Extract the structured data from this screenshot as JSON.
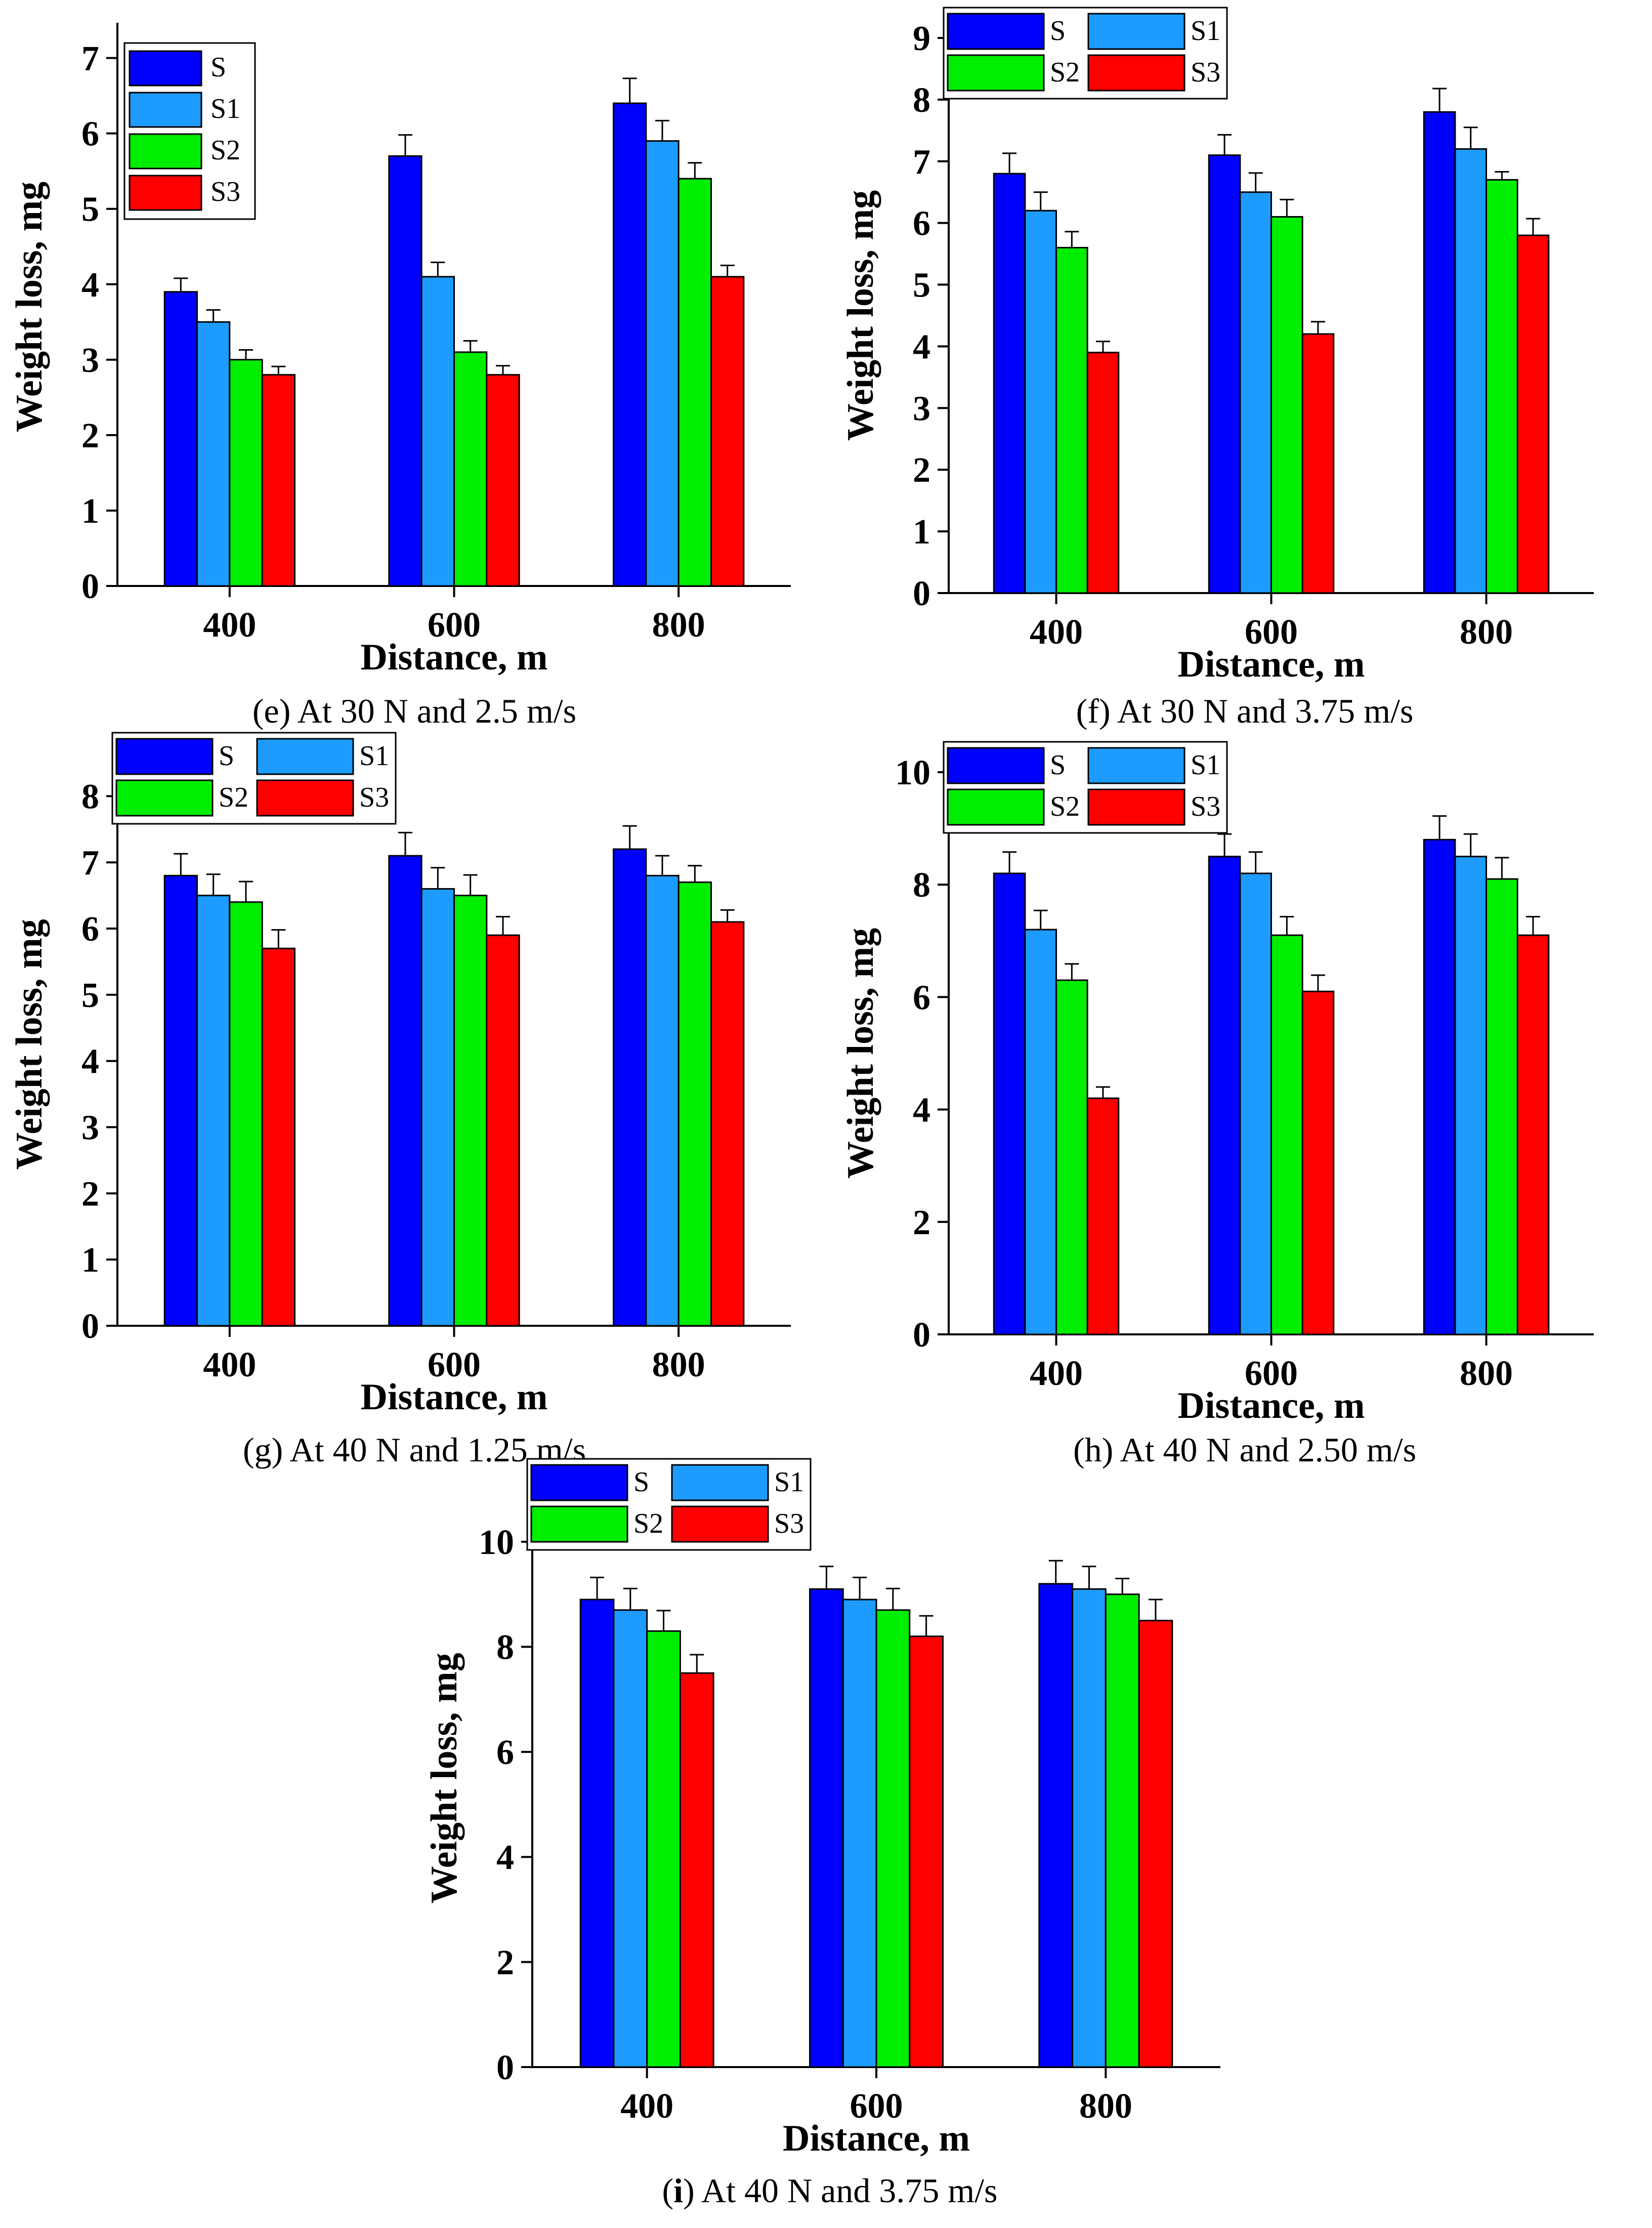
{
  "series_colors": {
    "S": "#0000ff",
    "S1": "#1e9bff",
    "S2": "#00ee00",
    "S3": "#ff0000"
  },
  "chart_data": [
    {
      "id": "e",
      "type": "bar",
      "caption": {
        "letter": "e",
        "text": "At 30 N and 2.5 m/s",
        "bold_letter": false
      },
      "xlabel": "Distance, m",
      "ylabel": "Weight loss, mg",
      "ylim": [
        0,
        7.4
      ],
      "yticks": [
        "0",
        "1",
        "2",
        "3",
        "4",
        "5",
        "6",
        "7"
      ],
      "categories": [
        "400",
        "600",
        "800"
      ],
      "legend": {
        "layout": "column",
        "placement": "top-left"
      },
      "series": [
        {
          "name": "S",
          "values": [
            3.9,
            5.7,
            6.4
          ],
          "errors": [
            0.18,
            0.28,
            0.33
          ]
        },
        {
          "name": "S1",
          "values": [
            3.5,
            4.1,
            5.9
          ],
          "errors": [
            0.16,
            0.19,
            0.27
          ]
        },
        {
          "name": "S2",
          "values": [
            3.0,
            3.1,
            5.4
          ],
          "errors": [
            0.13,
            0.15,
            0.21
          ]
        },
        {
          "name": "S3",
          "values": [
            2.8,
            2.8,
            4.1
          ],
          "errors": [
            0.11,
            0.12,
            0.15
          ]
        }
      ]
    },
    {
      "id": "f",
      "type": "bar",
      "caption": {
        "letter": "f",
        "text": "At 30 N and 3.75 m/s",
        "bold_letter": false
      },
      "xlabel": "Distance, m",
      "ylabel": "Weight loss, mg",
      "ylim": [
        0,
        9
      ],
      "yticks": [
        "0",
        "1",
        "2",
        "3",
        "4",
        "5",
        "6",
        "7",
        "8",
        "9"
      ],
      "categories": [
        "400",
        "600",
        "800"
      ],
      "legend": {
        "layout": "grid",
        "placement": "top"
      },
      "series": [
        {
          "name": "S",
          "values": [
            6.8,
            7.1,
            7.8
          ],
          "errors": [
            0.33,
            0.33,
            0.38
          ]
        },
        {
          "name": "S1",
          "values": [
            6.2,
            6.5,
            7.2
          ],
          "errors": [
            0.3,
            0.31,
            0.35
          ]
        },
        {
          "name": "S2",
          "values": [
            5.6,
            6.1,
            6.7
          ],
          "errors": [
            0.26,
            0.28,
            0.13
          ]
        },
        {
          "name": "S3",
          "values": [
            3.9,
            4.2,
            5.8
          ],
          "errors": [
            0.18,
            0.2,
            0.27
          ]
        }
      ]
    },
    {
      "id": "g",
      "type": "bar",
      "caption": {
        "letter": "g",
        "text": "At 40 N and 1.25 m/s",
        "bold_letter": false
      },
      "xlabel": "Distance, m",
      "ylabel": "Weight loss, mg",
      "ylim": [
        0,
        8.5
      ],
      "yticks": [
        "0",
        "1",
        "2",
        "3",
        "4",
        "5",
        "6",
        "7",
        "8"
      ],
      "categories": [
        "400",
        "600",
        "800"
      ],
      "legend": {
        "layout": "grid",
        "placement": "top"
      },
      "series": [
        {
          "name": "S",
          "values": [
            6.8,
            7.1,
            7.2
          ],
          "errors": [
            0.33,
            0.35,
            0.35
          ]
        },
        {
          "name": "S1",
          "values": [
            6.5,
            6.6,
            6.8
          ],
          "errors": [
            0.32,
            0.32,
            0.3
          ]
        },
        {
          "name": "S2",
          "values": [
            6.4,
            6.5,
            6.7
          ],
          "errors": [
            0.31,
            0.31,
            0.25
          ]
        },
        {
          "name": "S3",
          "values": [
            5.7,
            5.9,
            6.1
          ],
          "errors": [
            0.28,
            0.28,
            0.18
          ]
        }
      ]
    },
    {
      "id": "h",
      "type": "bar",
      "caption": {
        "letter": "h",
        "text": "At 40 N and 2.50 m/s",
        "bold_letter": false
      },
      "xlabel": "Distance, m",
      "ylabel": "Weight loss, mg",
      "ylim": [
        0,
        10
      ],
      "yticks": [
        "0",
        "2",
        "4",
        "6",
        "8",
        "10"
      ],
      "categories": [
        "400",
        "600",
        "800"
      ],
      "legend": {
        "layout": "grid",
        "placement": "top"
      },
      "series": [
        {
          "name": "S",
          "values": [
            8.2,
            8.5,
            8.8
          ],
          "errors": [
            0.38,
            0.4,
            0.42
          ]
        },
        {
          "name": "S1",
          "values": [
            7.2,
            8.2,
            8.5
          ],
          "errors": [
            0.34,
            0.38,
            0.4
          ]
        },
        {
          "name": "S2",
          "values": [
            6.3,
            7.1,
            8.1
          ],
          "errors": [
            0.29,
            0.33,
            0.38
          ]
        },
        {
          "name": "S3",
          "values": [
            4.2,
            6.1,
            7.1
          ],
          "errors": [
            0.2,
            0.29,
            0.33
          ]
        }
      ]
    },
    {
      "id": "i",
      "type": "bar",
      "caption": {
        "letter": "i",
        "text": "At 40 N and 3.75 m/s",
        "bold_letter": true
      },
      "xlabel": "Distance, m",
      "ylabel": "Weight loss, mg",
      "ylim": [
        0,
        11
      ],
      "yticks": [
        "0",
        "2",
        "4",
        "6",
        "8",
        "10"
      ],
      "categories": [
        "400",
        "600",
        "800"
      ],
      "legend": {
        "layout": "grid",
        "placement": "top"
      },
      "series": [
        {
          "name": "S",
          "values": [
            8.9,
            9.1,
            9.2
          ],
          "errors": [
            0.42,
            0.43,
            0.44
          ]
        },
        {
          "name": "S1",
          "values": [
            8.7,
            8.9,
            9.1
          ],
          "errors": [
            0.41,
            0.42,
            0.43
          ]
        },
        {
          "name": "S2",
          "values": [
            8.3,
            8.7,
            9.0
          ],
          "errors": [
            0.39,
            0.41,
            0.3
          ]
        },
        {
          "name": "S3",
          "values": [
            7.5,
            8.2,
            8.5
          ],
          "errors": [
            0.35,
            0.39,
            0.4
          ]
        }
      ]
    }
  ]
}
